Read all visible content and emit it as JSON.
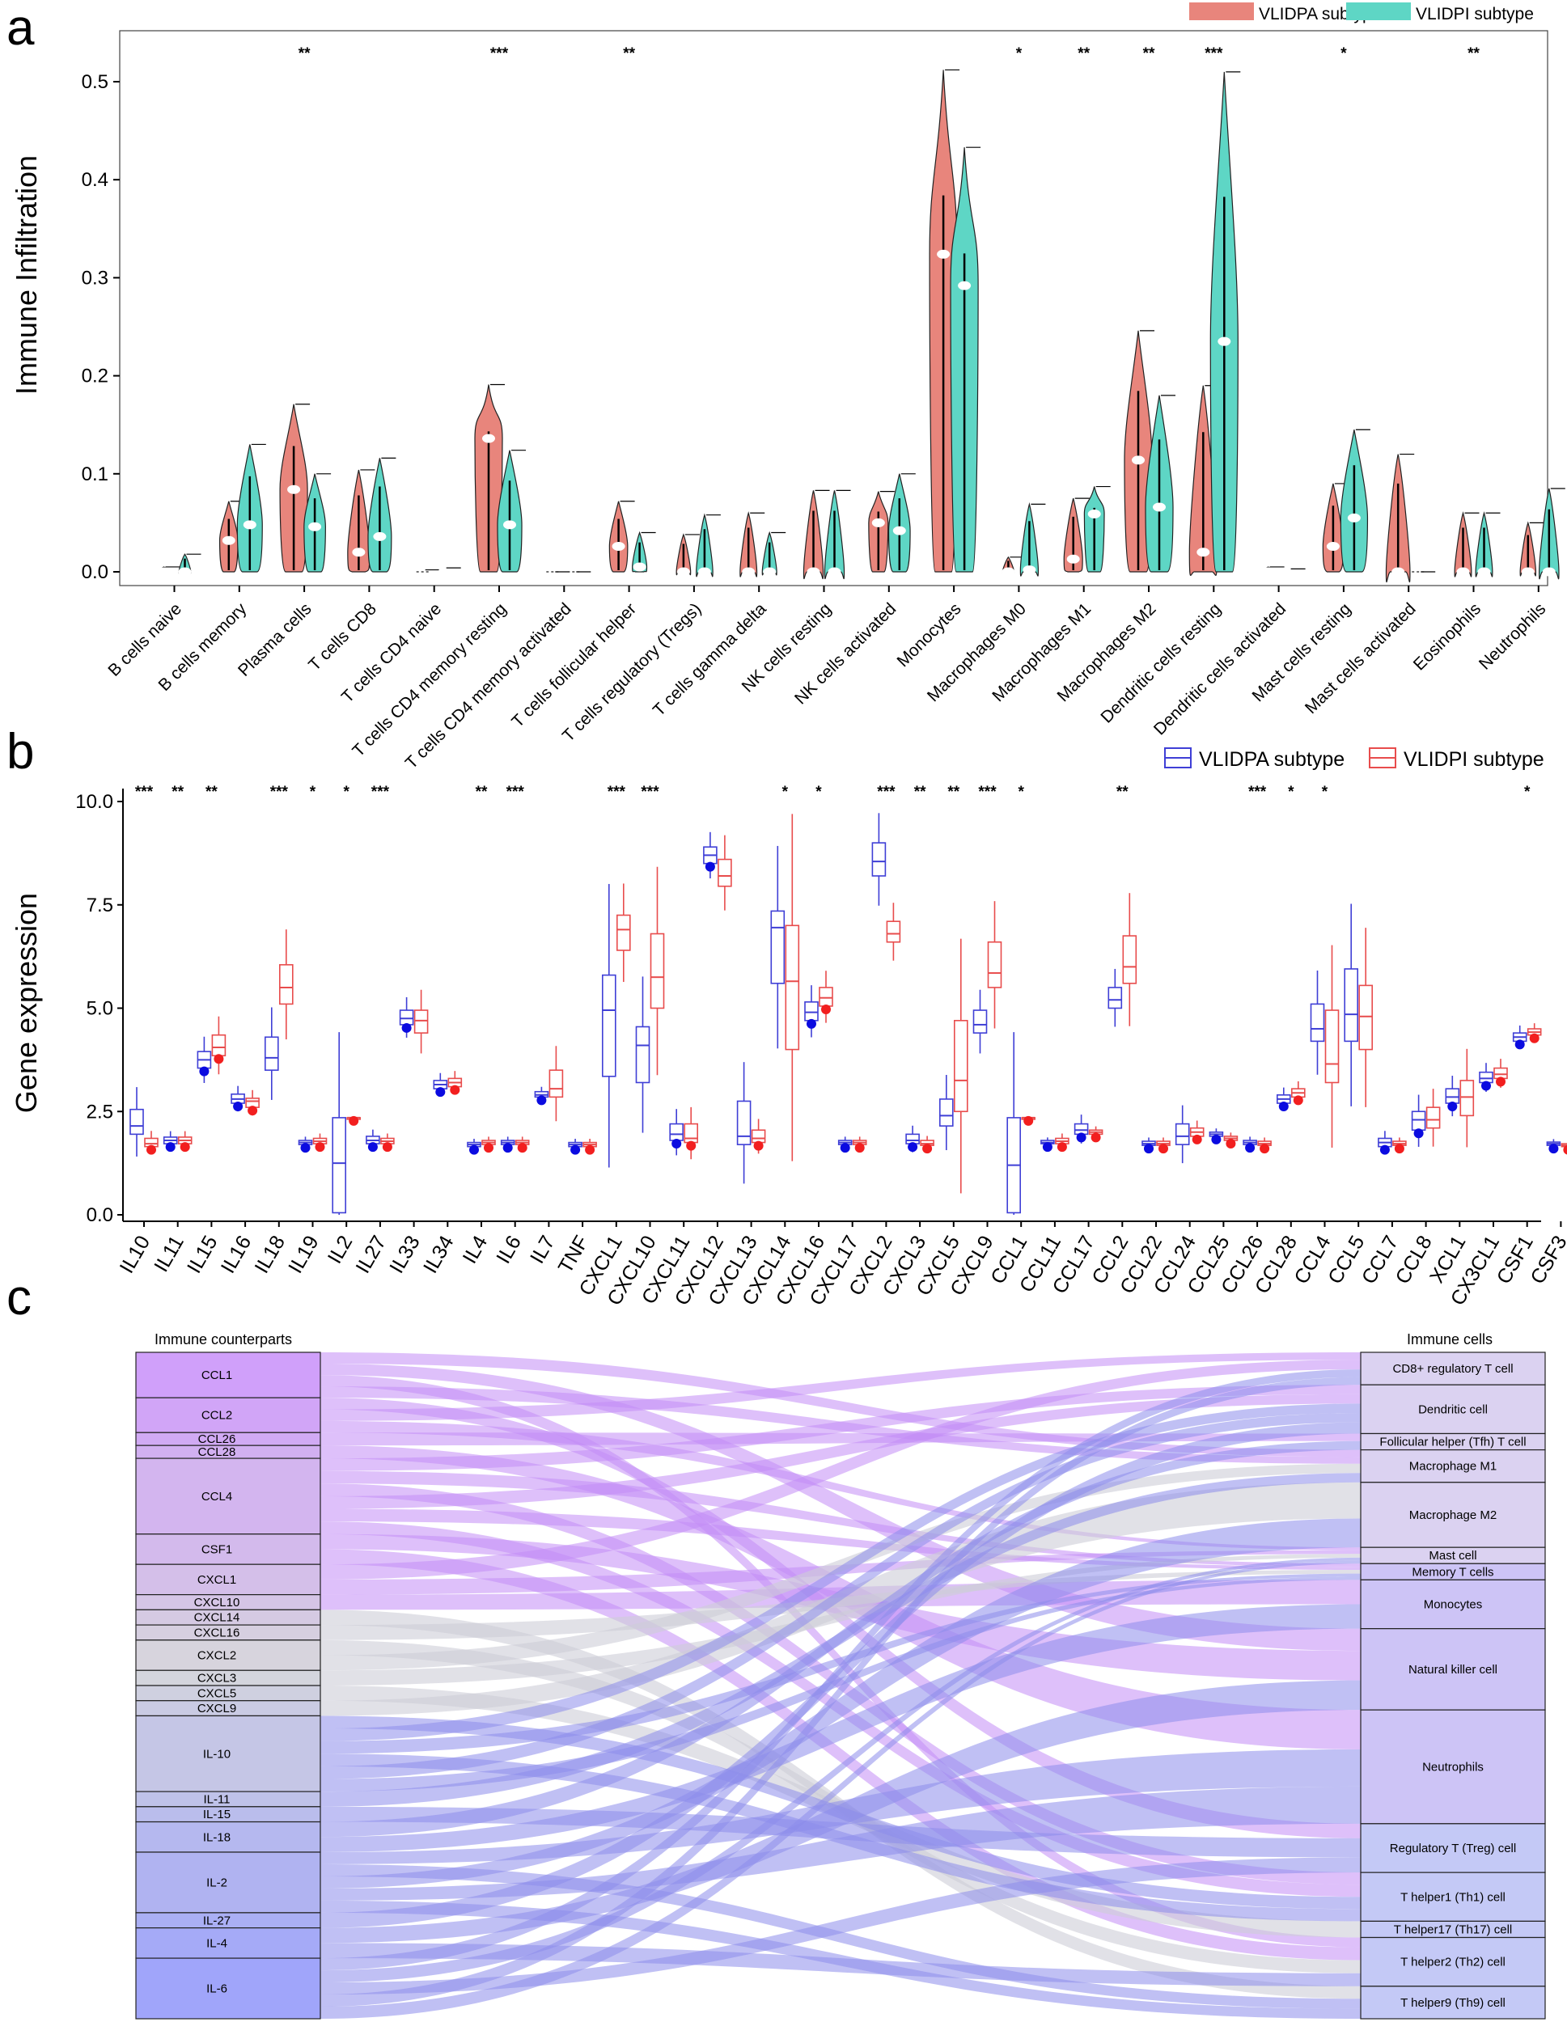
{
  "panels": {
    "a": "a",
    "b": "b",
    "c": "c"
  },
  "colors": {
    "subtypeA_fill": "#E8857C",
    "subtypeI_fill": "#5ED6C5",
    "boxA": "#3F3FD6",
    "boxI": "#E84C4C",
    "ptA": "#0B0BE0",
    "ptI": "#F21F1F"
  },
  "chart_data": [
    {
      "type": "violin",
      "ylabel": "Immune Infiltration",
      "ylim": [
        -0.02,
        0.54
      ],
      "yticks": [
        "0.0",
        "0.1",
        "0.2",
        "0.3",
        "0.4",
        "0.5"
      ],
      "legend": [
        "VLIDPA subtype",
        "VLIDPI subtype"
      ],
      "legend_position": "top-right",
      "categories": [
        "B cells naive",
        "B cells memory",
        "Plasma cells",
        "T cells CD8",
        "T cells CD4 naive",
        "T cells CD4 memory resting",
        "T cells CD4 memory activated",
        "T cells follicular helper",
        "T cells regulatory (Tregs)",
        "T cells gamma delta",
        "NK cells resting",
        "NK cells activated",
        "Monocytes",
        "Macrophages M0",
        "Macrophages M1",
        "Macrophages M2",
        "Dendritic cells resting",
        "Dendritic cells activated",
        "Mast cells resting",
        "Mast cells activated",
        "Eosinophils",
        "Neutrophils"
      ],
      "significance": [
        "",
        "",
        "**",
        "",
        "",
        "***",
        "",
        "**",
        "",
        "",
        "",
        "",
        "",
        "*",
        "**",
        "**",
        "***",
        "",
        "*",
        "",
        "**",
        ""
      ],
      "series": [
        {
          "name": "VLIDPA subtype",
          "max": [
            0.005,
            0.072,
            0.171,
            0.104,
            0.002,
            0.191,
            0.0,
            0.072,
            0.038,
            0.06,
            0.083,
            0.082,
            0.512,
            0.015,
            0.075,
            0.246,
            0.19,
            0.005,
            0.09,
            0.12,
            0.06,
            0.05
          ],
          "median": [
            0.0,
            0.032,
            0.084,
            0.02,
            0.0,
            0.136,
            0.0,
            0.026,
            0.0,
            0.0,
            0.0,
            0.05,
            0.324,
            0.0,
            0.013,
            0.114,
            0.02,
            0.0,
            0.026,
            0.0,
            0.0,
            0.0
          ]
        },
        {
          "name": "VLIDPI subtype",
          "max": [
            0.018,
            0.13,
            0.1,
            0.116,
            0.004,
            0.124,
            0.0,
            0.04,
            0.058,
            0.04,
            0.083,
            0.1,
            0.433,
            0.069,
            0.087,
            0.18,
            0.51,
            0.003,
            0.145,
            0.0,
            0.06,
            0.085
          ],
          "median": [
            0.0,
            0.048,
            0.046,
            0.036,
            0.0,
            0.048,
            0.0,
            0.005,
            0.0,
            0.0,
            0.0,
            0.042,
            0.292,
            0.002,
            0.059,
            0.066,
            0.235,
            0.0,
            0.055,
            0.0,
            0.0,
            0.0
          ]
        }
      ]
    },
    {
      "type": "box",
      "ylabel": "Gene expression",
      "ylim": [
        -0.3,
        10.3
      ],
      "yticks": [
        "0.0",
        "2.5",
        "5.0",
        "7.5",
        "10.0"
      ],
      "legend": [
        "VLIDPA subtype",
        "VLIDPI subtype"
      ],
      "legend_position": "top-right",
      "categories": [
        "IL10",
        "IL11",
        "IL15",
        "IL16",
        "IL18",
        "IL19",
        "IL2",
        "IL27",
        "IL33",
        "IL34",
        "IL4",
        "IL6",
        "IL7",
        "TNF",
        "CXCL1",
        "CXCL10",
        "CXCL11",
        "CXCL12",
        "CXCL13",
        "CXCL14",
        "CXCL16",
        "CXCL17",
        "CXCL2",
        "CXCL3",
        "CXCL5",
        "CXCL9",
        "CCL1",
        "CCL11",
        "CCL17",
        "CCL2",
        "CCL22",
        "CCL24",
        "CCL25",
        "CCL26",
        "CCL28",
        "CCL4",
        "CCL5",
        "CCL7",
        "CCL8",
        "XCL1",
        "CX3CL1",
        "CSF1",
        "CSF3"
      ],
      "significance": [
        "***",
        "**",
        "**",
        "",
        "***",
        "*",
        "*",
        "***",
        "",
        "",
        "**",
        "***",
        "",
        "",
        "***",
        "***",
        "",
        "",
        "",
        "*",
        "*",
        "",
        "***",
        "**",
        "**",
        "***",
        "*",
        "",
        "",
        "**",
        "",
        "",
        "",
        "***",
        "*",
        "*",
        "",
        "",
        "",
        "",
        "",
        "*",
        ""
      ],
      "series": [
        {
          "name": "VLIDPA subtype",
          "q1": [
            1.95,
            1.72,
            3.55,
            2.7,
            3.5,
            1.7,
            0.05,
            1.72,
            4.6,
            3.05,
            1.65,
            1.7,
            2.85,
            1.65,
            3.35,
            3.2,
            1.8,
            8.5,
            1.7,
            5.6,
            4.7,
            1.7,
            8.2,
            1.72,
            2.15,
            4.4,
            0.05,
            1.72,
            1.95,
            5.0,
            1.68,
            1.7,
            1.9,
            1.7,
            2.7,
            4.2,
            4.2,
            1.65,
            2.05,
            2.7,
            3.2,
            4.2,
            1.68
          ],
          "median": [
            2.15,
            1.8,
            3.75,
            2.8,
            3.8,
            1.75,
            1.25,
            1.8,
            4.75,
            3.15,
            1.7,
            1.75,
            2.9,
            1.7,
            4.95,
            4.1,
            1.95,
            8.7,
            1.9,
            6.95,
            4.9,
            1.75,
            8.55,
            1.8,
            2.4,
            4.6,
            1.2,
            1.75,
            2.05,
            5.2,
            1.72,
            1.9,
            1.95,
            1.75,
            2.8,
            4.5,
            4.85,
            1.75,
            2.3,
            2.85,
            3.3,
            4.3,
            1.72
          ],
          "q3": [
            2.55,
            1.88,
            3.95,
            2.92,
            4.3,
            1.8,
            2.35,
            1.9,
            4.95,
            3.25,
            1.75,
            1.8,
            2.98,
            1.75,
            5.8,
            4.55,
            2.2,
            8.9,
            2.75,
            7.35,
            5.15,
            1.8,
            9.0,
            1.95,
            2.8,
            4.95,
            2.35,
            1.8,
            2.2,
            5.5,
            1.78,
            2.2,
            2.0,
            1.8,
            2.9,
            5.1,
            5.95,
            1.85,
            2.5,
            3.05,
            3.45,
            4.4,
            1.76
          ]
        },
        {
          "name": "VLIDPI subtype",
          "q1": [
            1.65,
            1.72,
            3.85,
            2.6,
            5.1,
            1.72,
            2.35,
            1.72,
            4.4,
            3.1,
            1.7,
            1.7,
            2.85,
            1.65,
            6.4,
            5.0,
            1.75,
            7.95,
            1.75,
            4.0,
            5.05,
            1.7,
            6.6,
            1.68,
            2.5,
            5.5,
            2.35,
            1.72,
            1.95,
            5.6,
            1.68,
            1.9,
            1.8,
            1.68,
            2.85,
            3.2,
            4.0,
            1.68,
            2.1,
            2.4,
            3.3,
            4.35,
            1.65
          ],
          "median": [
            1.72,
            1.8,
            4.05,
            2.75,
            5.5,
            1.78,
            2.35,
            1.78,
            4.7,
            3.2,
            1.75,
            1.75,
            3.05,
            1.7,
            6.9,
            5.75,
            1.85,
            8.2,
            1.85,
            5.65,
            5.25,
            1.75,
            6.8,
            1.72,
            3.25,
            5.85,
            2.35,
            1.78,
            2.0,
            6.0,
            1.72,
            2.0,
            1.85,
            1.72,
            2.95,
            3.65,
            4.8,
            1.72,
            2.3,
            2.85,
            3.4,
            4.42,
            1.68
          ],
          "q3": [
            1.85,
            1.88,
            4.35,
            2.82,
            6.05,
            1.85,
            2.35,
            1.85,
            4.95,
            3.3,
            1.8,
            1.8,
            3.5,
            1.75,
            7.25,
            6.8,
            2.2,
            8.6,
            2.05,
            7.0,
            5.5,
            1.8,
            7.1,
            1.8,
            4.7,
            6.6,
            2.35,
            1.85,
            2.05,
            6.75,
            1.78,
            2.1,
            1.9,
            1.78,
            3.05,
            4.95,
            5.55,
            1.78,
            2.6,
            3.25,
            3.55,
            4.5,
            1.72
          ]
        }
      ]
    },
    {
      "type": "sankey",
      "left_title": "Immune counterparts",
      "right_title": "Immune cells",
      "left_nodes": [
        {
          "label": "CCL1",
          "weight": 3
        },
        {
          "label": "CCL2",
          "weight": 2.3
        },
        {
          "label": "CCL26",
          "weight": 0.85
        },
        {
          "label": "CCL28",
          "weight": 0.85
        },
        {
          "label": "CCL4",
          "weight": 5
        },
        {
          "label": "CSF1",
          "weight": 2
        },
        {
          "label": "CXCL1",
          "weight": 2
        },
        {
          "label": "CXCL10",
          "weight": 1
        },
        {
          "label": "CXCL14",
          "weight": 1
        },
        {
          "label": "CXCL16",
          "weight": 1
        },
        {
          "label": "CXCL2",
          "weight": 2
        },
        {
          "label": "CXCL3",
          "weight": 1
        },
        {
          "label": "CXCL5",
          "weight": 1
        },
        {
          "label": "CXCL9",
          "weight": 1
        },
        {
          "label": "IL-10",
          "weight": 5
        },
        {
          "label": "IL-11",
          "weight": 1
        },
        {
          "label": "IL-15",
          "weight": 1
        },
        {
          "label": "IL-18",
          "weight": 2
        },
        {
          "label": "IL-2",
          "weight": 4
        },
        {
          "label": "IL-27",
          "weight": 1
        },
        {
          "label": "IL-4",
          "weight": 2
        },
        {
          "label": "IL-6",
          "weight": 4
        }
      ],
      "right_nodes": [
        {
          "label": "CD8+ regulatory T cell",
          "weight": 2
        },
        {
          "label": "Dendritic cell",
          "weight": 3
        },
        {
          "label": "Follicular helper (Tfh) T cell",
          "weight": 1
        },
        {
          "label": "Macrophage M1",
          "weight": 2
        },
        {
          "label": "Macrophage M2",
          "weight": 4
        },
        {
          "label": "Mast cell",
          "weight": 1
        },
        {
          "label": "Memory T cells",
          "weight": 1
        },
        {
          "label": "Monocytes",
          "weight": 3
        },
        {
          "label": "Natural killer cell",
          "weight": 5
        },
        {
          "label": "Neutrophils",
          "weight": 7
        },
        {
          "label": "Regulatory T (Treg) cell",
          "weight": 3
        },
        {
          "label": "T helper1 (Th1) cell",
          "weight": 3
        },
        {
          "label": "T helper17 (Th17) cell",
          "weight": 1
        },
        {
          "label": "T helper2 (Th2) cell",
          "weight": 3
        },
        {
          "label": "T helper9 (Th9) cell",
          "weight": 2
        }
      ]
    }
  ]
}
